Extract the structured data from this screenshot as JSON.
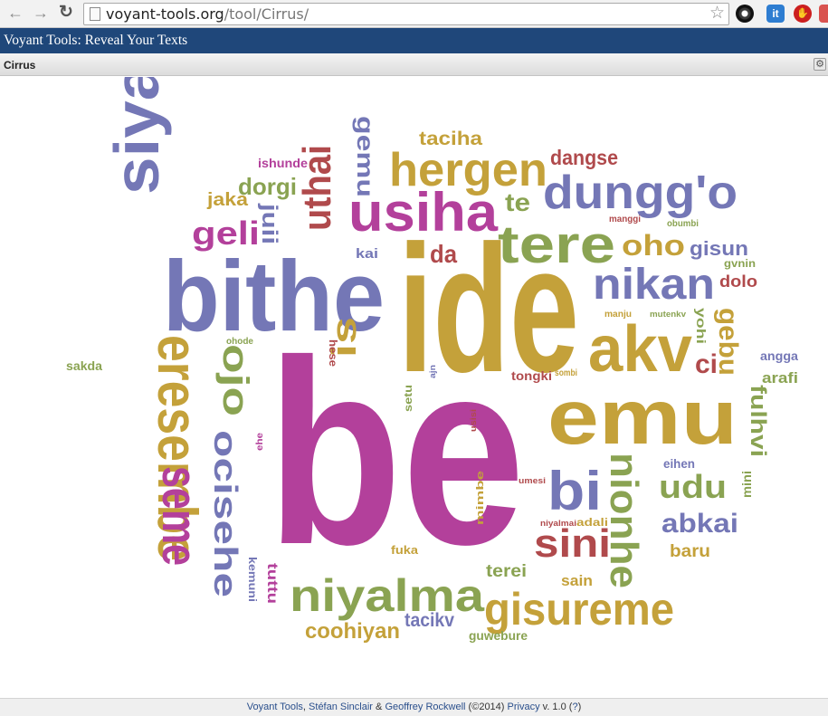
{
  "browser": {
    "back_icon": "arrow-left-icon",
    "forward_icon": "arrow-right-icon",
    "reload_icon": "reload-icon",
    "url_host": "voyant-tools.org",
    "url_path": "/tool/Cirrus/",
    "extensions": [
      "chrome-extension-icon",
      "it-extension-icon",
      "stop-extension-icon",
      "extension-icon"
    ],
    "ext2_label": "it"
  },
  "app": {
    "title": "Voyant Tools: Reveal Your Texts",
    "header_color": "#1f477a"
  },
  "panel": {
    "title": "Cirrus"
  },
  "colors": {
    "magenta": "#b3409b",
    "blue": "#7477b6",
    "olive": "#c4a13a",
    "green": "#8aa352",
    "red": "#b04a4c"
  },
  "chart_data": {
    "type": "wordcloud",
    "words": [
      {
        "text": "be",
        "color": "magenta",
        "rotate": 0
      },
      {
        "text": "ide",
        "color": "olive",
        "rotate": 0
      },
      {
        "text": "bithe",
        "color": "blue",
        "rotate": 0
      },
      {
        "text": "emu",
        "color": "olive",
        "rotate": 0
      },
      {
        "text": "siyanxeng",
        "color": "blue",
        "rotate": -90
      },
      {
        "text": "eresembe",
        "color": "olive",
        "rotate": 90
      },
      {
        "text": "usiha",
        "color": "magenta",
        "rotate": 0
      },
      {
        "text": "hergen",
        "color": "olive",
        "rotate": 0
      },
      {
        "text": "dungg'o",
        "color": "blue",
        "rotate": 0
      },
      {
        "text": "tere",
        "color": "green",
        "rotate": 0
      },
      {
        "text": "akv",
        "color": "olive",
        "rotate": 0
      },
      {
        "text": "nikan",
        "color": "blue",
        "rotate": 0
      },
      {
        "text": "niyalma",
        "color": "green",
        "rotate": 0
      },
      {
        "text": "gisureme",
        "color": "olive",
        "rotate": 0
      },
      {
        "text": "ocisehe",
        "color": "blue",
        "rotate": 90
      },
      {
        "text": "seme",
        "color": "magenta",
        "rotate": 90
      },
      {
        "text": "nionhe",
        "color": "green",
        "rotate": 90
      },
      {
        "text": "bi",
        "color": "blue",
        "rotate": 0
      },
      {
        "text": "sini",
        "color": "red",
        "rotate": 0
      },
      {
        "text": "uthai",
        "color": "red",
        "rotate": -90
      },
      {
        "text": "ojo",
        "color": "green",
        "rotate": 90
      },
      {
        "text": "is",
        "color": "olive",
        "rotate": -90
      },
      {
        "text": "geli",
        "color": "magenta",
        "rotate": 0
      },
      {
        "text": "oho",
        "color": "olive",
        "rotate": 0
      },
      {
        "text": "dorgi",
        "color": "green",
        "rotate": 0
      },
      {
        "text": "gemu",
        "color": "blue",
        "rotate": 90
      },
      {
        "text": "taciha",
        "color": "olive",
        "rotate": 0
      },
      {
        "text": "dangse",
        "color": "red",
        "rotate": 0
      },
      {
        "text": "te",
        "color": "green",
        "rotate": 0
      },
      {
        "text": "da",
        "color": "red",
        "rotate": 0
      },
      {
        "text": "kai",
        "color": "blue",
        "rotate": 0
      },
      {
        "text": "juii",
        "color": "blue",
        "rotate": 90
      },
      {
        "text": "jaka",
        "color": "olive",
        "rotate": 0
      },
      {
        "text": "ishunde",
        "color": "magenta",
        "rotate": 0
      },
      {
        "text": "gisun",
        "color": "blue",
        "rotate": 0
      },
      {
        "text": "gvnin",
        "color": "green",
        "rotate": 0
      },
      {
        "text": "dolo",
        "color": "red",
        "rotate": 0
      },
      {
        "text": "gebu",
        "color": "olive",
        "rotate": 90
      },
      {
        "text": "ci",
        "color": "red",
        "rotate": 0
      },
      {
        "text": "yohi",
        "color": "green",
        "rotate": 90
      },
      {
        "text": "manggi",
        "color": "red",
        "rotate": 0
      },
      {
        "text": "obumbi",
        "color": "green",
        "rotate": 0
      },
      {
        "text": "manju",
        "color": "olive",
        "rotate": 0
      },
      {
        "text": "mutenkv",
        "color": "green",
        "rotate": 0
      },
      {
        "text": "angga",
        "color": "blue",
        "rotate": 0
      },
      {
        "text": "arafi",
        "color": "green",
        "rotate": 0
      },
      {
        "text": "fulhvi",
        "color": "green",
        "rotate": 90
      },
      {
        "text": "udu",
        "color": "green",
        "rotate": 0
      },
      {
        "text": "eihen",
        "color": "blue",
        "rotate": 0
      },
      {
        "text": "mini",
        "color": "green",
        "rotate": -90
      },
      {
        "text": "abkai",
        "color": "blue",
        "rotate": 0
      },
      {
        "text": "baru",
        "color": "olive",
        "rotate": 0
      },
      {
        "text": "tongki",
        "color": "red",
        "rotate": 0
      },
      {
        "text": "sombi",
        "color": "olive",
        "rotate": 0
      },
      {
        "text": "adali",
        "color": "olive",
        "rotate": 0
      },
      {
        "text": "niyalmai",
        "color": "red",
        "rotate": 0
      },
      {
        "text": "umesi",
        "color": "red",
        "rotate": 0
      },
      {
        "text": "mimbe",
        "color": "olive",
        "rotate": -90
      },
      {
        "text": "usisi",
        "color": "red",
        "rotate": -90
      },
      {
        "text": "setu",
        "color": "green",
        "rotate": -90
      },
      {
        "text": "ajn",
        "color": "blue",
        "rotate": -90
      },
      {
        "text": "hese",
        "color": "red",
        "rotate": 90
      },
      {
        "text": "ohode",
        "color": "green",
        "rotate": 0
      },
      {
        "text": "ehe",
        "color": "magenta",
        "rotate": -90
      },
      {
        "text": "sakda",
        "color": "green",
        "rotate": 0
      },
      {
        "text": "kemuni",
        "color": "blue",
        "rotate": 90
      },
      {
        "text": "tuttu",
        "color": "magenta",
        "rotate": 90
      },
      {
        "text": "fuka",
        "color": "olive",
        "rotate": 0
      },
      {
        "text": "terei",
        "color": "green",
        "rotate": 0
      },
      {
        "text": "sain",
        "color": "olive",
        "rotate": 0
      },
      {
        "text": "coohiyan",
        "color": "olive",
        "rotate": 0
      },
      {
        "text": "tacikv",
        "color": "blue",
        "rotate": 0
      },
      {
        "text": "guwebure",
        "color": "green",
        "rotate": 0
      }
    ]
  },
  "footer": {
    "link_voyant": "Voyant Tools",
    "sep1": ", ",
    "link_sinclair": "Stéfan Sinclair",
    "sep2": " & ",
    "link_rockwell": "Geoffrey Rockwell",
    "copyright": " (©2014) ",
    "link_privacy": "Privacy",
    "version": " v. 1.0 (",
    "link_help": "?",
    "close": ")"
  }
}
